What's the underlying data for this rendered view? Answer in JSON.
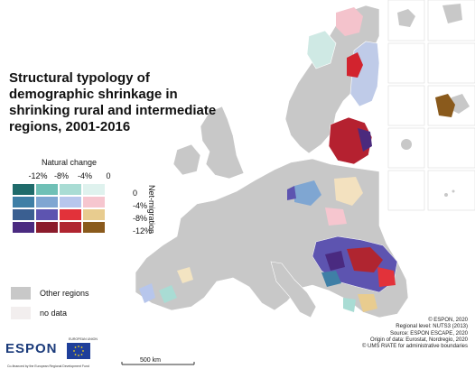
{
  "title": "Structural typology of demographic shrinkage in shrinking rural and intermediate regions, 2001-2016",
  "legend": {
    "natural_change_title": "Natural change",
    "natural_change_ticks": [
      "-12%",
      "-8%",
      "-4%",
      "0"
    ],
    "net_migration_title": "Net-migration",
    "net_migration_ticks": [
      "0",
      "-4%",
      "-8%",
      "-12%"
    ],
    "matrix_colors": [
      [
        "#1f6b6b",
        "#6fc0b6",
        "#a9dcd4",
        "#dff2ee"
      ],
      [
        "#3f7fa6",
        "#7fa6d2",
        "#b7c6ec",
        "#f6c6cf"
      ],
      [
        "#3a5f91",
        "#5d54b0",
        "#e2323a",
        "#e8cc8f"
      ],
      [
        "#4a2a80",
        "#8b1c2c",
        "#b02530",
        "#8a5a1c"
      ]
    ],
    "other_regions_label": "Other regions",
    "other_regions_color": "#c8c8c8",
    "no_data_label": "no data",
    "no_data_color": "#f2eeee"
  },
  "logos": {
    "espon": "ESPON",
    "espon_subtitle": "Co-financed by the European Regional Development Fund",
    "eu_label": "EUROPEAN UNION"
  },
  "scale_bar": "500 km",
  "credits": [
    "© ESPON, 2020",
    "Regional level: NUTS3 (2013)",
    "Source: ESPON ESCAPE, 2020",
    "Origin of data: Eurostat, Nordregio, 2020",
    "© UMS RIATE for administrative boundaries"
  ],
  "colors": {
    "sea": "#ffffff",
    "land_nonshrinking": "#c8c8c8",
    "boundary": "#ffffff"
  }
}
